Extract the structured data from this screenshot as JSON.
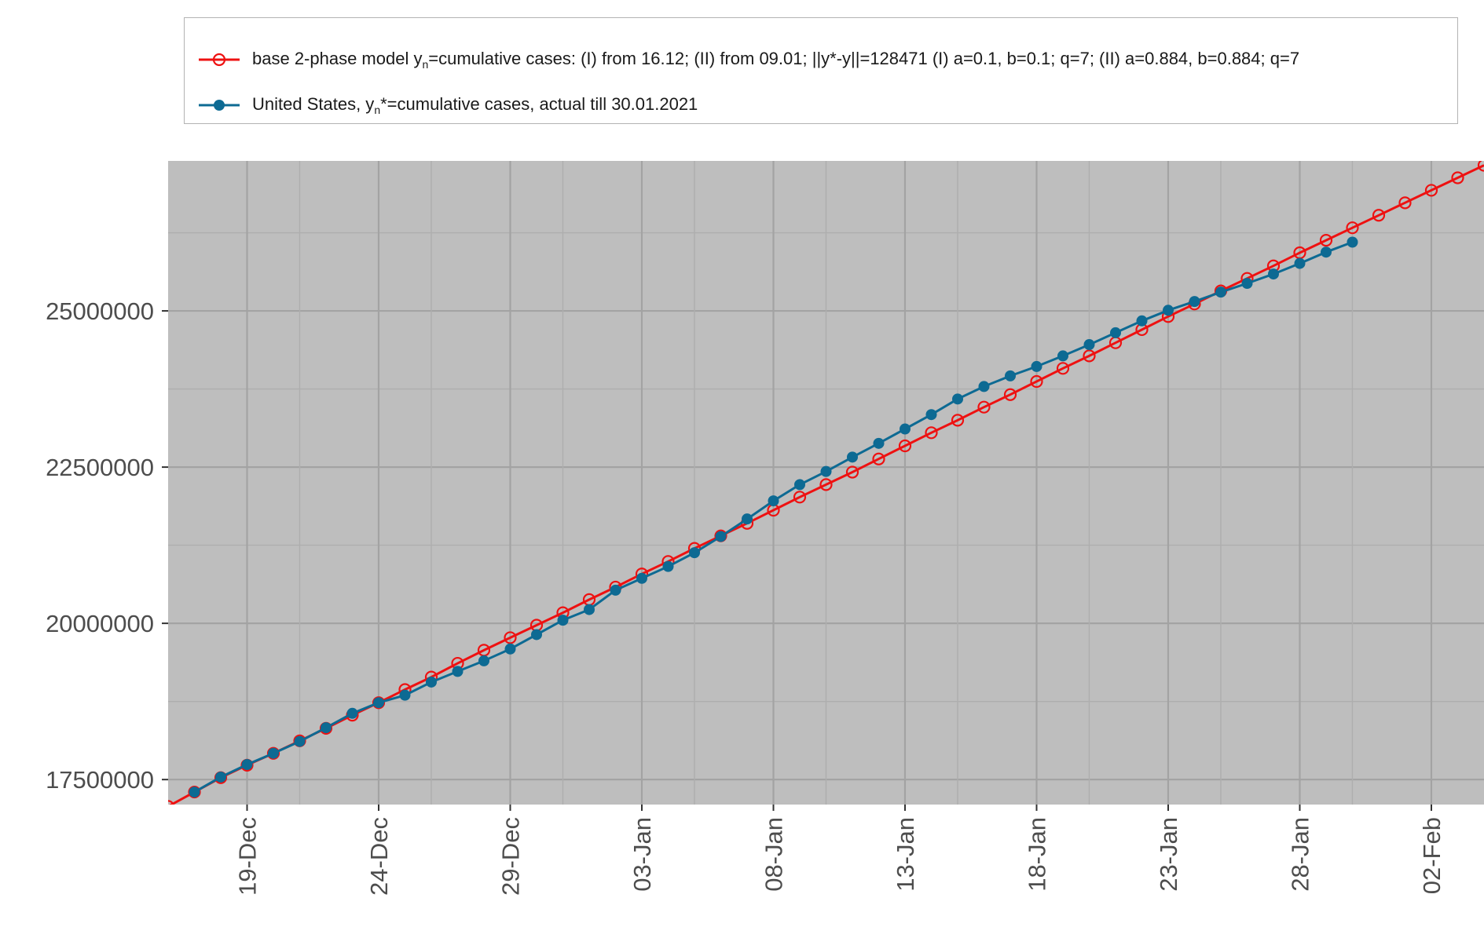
{
  "legend": {
    "model": {
      "prefix": "base 2-phase model y",
      "sub": "n",
      "suffix": "=cumulative cases: (I) from 16.12; (II) from 09.01; ||y*-y||=128471  (I) a=0.1, b=0.1; q=7; (II) a=0.884, b=0.884; q=7"
    },
    "actual": {
      "prefix": "United States, y",
      "sub": "n",
      "suffix": "*=cumulative cases, actual till 30.01.2021"
    }
  },
  "colors": {
    "model": "#ee1111",
    "actual": "#0d6a93",
    "panel": "#bebebe",
    "grid_major": "#a3a3a3",
    "grid_minor": "#aeaeae"
  },
  "chart_data": {
    "type": "line",
    "xlabel": "",
    "ylabel": "",
    "x_domain": [
      "2020-12-16",
      "2021-02-04"
    ],
    "ylim": [
      17100000,
      27400000
    ],
    "yticks": [
      17500000,
      20000000,
      22500000,
      25000000
    ],
    "ytick_labels": [
      "17500000",
      "20000000",
      "22500000",
      "25000000"
    ],
    "xticks": [
      "2020-12-19",
      "2020-12-24",
      "2020-12-29",
      "2021-01-03",
      "2021-01-08",
      "2021-01-13",
      "2021-01-18",
      "2021-01-23",
      "2021-01-28",
      "2021-02-02"
    ],
    "xtick_labels": [
      "19-Dec",
      "24-Dec",
      "29-Dec",
      "03-Jan",
      "08-Jan",
      "13-Jan",
      "18-Jan",
      "23-Jan",
      "28-Jan",
      "02-Feb"
    ],
    "grid": true,
    "legend_position": "top",
    "series": [
      {
        "name": "base 2-phase model yn=cumulative cases: (I) from 16.12; (II) from 09.01; ||y*-y||=128471  (I) a=0.1, b=0.1; q=7; (II) a=0.884, b=0.884; q=7",
        "marker": "open-circle",
        "x": [
          "2020-12-16",
          "2020-12-17",
          "2020-12-18",
          "2020-12-19",
          "2020-12-20",
          "2020-12-21",
          "2020-12-22",
          "2020-12-23",
          "2020-12-24",
          "2020-12-25",
          "2020-12-26",
          "2020-12-27",
          "2020-12-28",
          "2020-12-29",
          "2020-12-30",
          "2020-12-31",
          "2021-01-01",
          "2021-01-02",
          "2021-01-03",
          "2021-01-04",
          "2021-01-05",
          "2021-01-06",
          "2021-01-07",
          "2021-01-08",
          "2021-01-09",
          "2021-01-10",
          "2021-01-11",
          "2021-01-12",
          "2021-01-13",
          "2021-01-14",
          "2021-01-15",
          "2021-01-16",
          "2021-01-17",
          "2021-01-18",
          "2021-01-19",
          "2021-01-20",
          "2021-01-21",
          "2021-01-22",
          "2021-01-23",
          "2021-01-24",
          "2021-01-25",
          "2021-01-26",
          "2021-01-27",
          "2021-01-28",
          "2021-01-29",
          "2021-01-30",
          "2021-01-31",
          "2021-02-01",
          "2021-02-02",
          "2021-02-03",
          "2021-02-04"
        ],
        "y": [
          17070000,
          17300000,
          17530000,
          17730000,
          17920000,
          18120000,
          18320000,
          18530000,
          18730000,
          18940000,
          19140000,
          19360000,
          19570000,
          19770000,
          19970000,
          20170000,
          20380000,
          20580000,
          20790000,
          20990000,
          21200000,
          21400000,
          21600000,
          21810000,
          22020000,
          22220000,
          22420000,
          22630000,
          22840000,
          23050000,
          23250000,
          23460000,
          23660000,
          23870000,
          24080000,
          24280000,
          24490000,
          24700000,
          24910000,
          25110000,
          25320000,
          25520000,
          25720000,
          25930000,
          26130000,
          26330000,
          26530000,
          26730000,
          26930000,
          27130000,
          27330000
        ]
      },
      {
        "name": "United States, yn*=cumulative cases, actual till 30.01.2021",
        "marker": "filled-circle",
        "x": [
          "2020-12-17",
          "2020-12-18",
          "2020-12-19",
          "2020-12-20",
          "2020-12-21",
          "2020-12-22",
          "2020-12-23",
          "2020-12-24",
          "2020-12-25",
          "2020-12-26",
          "2020-12-27",
          "2020-12-28",
          "2020-12-29",
          "2020-12-30",
          "2020-12-31",
          "2021-01-01",
          "2021-01-02",
          "2021-01-03",
          "2021-01-04",
          "2021-01-05",
          "2021-01-06",
          "2021-01-07",
          "2021-01-08",
          "2021-01-09",
          "2021-01-10",
          "2021-01-11",
          "2021-01-12",
          "2021-01-13",
          "2021-01-14",
          "2021-01-15",
          "2021-01-16",
          "2021-01-17",
          "2021-01-18",
          "2021-01-19",
          "2021-01-20",
          "2021-01-21",
          "2021-01-22",
          "2021-01-23",
          "2021-01-24",
          "2021-01-25",
          "2021-01-26",
          "2021-01-27",
          "2021-01-28",
          "2021-01-29",
          "2021-01-30"
        ],
        "y": [
          17300000,
          17540000,
          17740000,
          17920000,
          18110000,
          18330000,
          18560000,
          18730000,
          18850000,
          19060000,
          19230000,
          19400000,
          19590000,
          19820000,
          20050000,
          20220000,
          20530000,
          20720000,
          20910000,
          21130000,
          21390000,
          21670000,
          21960000,
          22220000,
          22430000,
          22660000,
          22880000,
          23110000,
          23340000,
          23590000,
          23790000,
          23960000,
          24110000,
          24280000,
          24460000,
          24650000,
          24840000,
          25010000,
          25150000,
          25300000,
          25440000,
          25590000,
          25760000,
          25940000,
          26100000
        ]
      }
    ]
  }
}
